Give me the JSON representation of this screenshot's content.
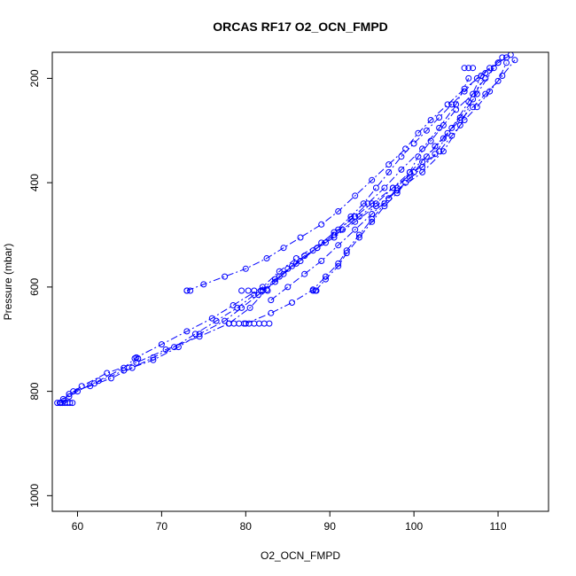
{
  "chart_data": {
    "type": "line",
    "title": "ORCAS RF17 O2_OCN_FMPD",
    "xlabel": "O2_OCN_FMPD",
    "ylabel": "Pressure (mbar)",
    "xlim": [
      57,
      116
    ],
    "ylim": [
      1030,
      150
    ],
    "y_reversed": true,
    "xticks": [
      60,
      70,
      80,
      90,
      100,
      110
    ],
    "yticks": [
      200,
      400,
      600,
      800,
      1000
    ],
    "grid": false,
    "color": "#0000ff",
    "marker": "open-circle",
    "series": [
      {
        "x": [
          58.0,
          58.4,
          59.0,
          60.0,
          62.5,
          65.5,
          67.0,
          70.0,
          73.0,
          76.0,
          78.5,
          82.0,
          84.0,
          86.0,
          89.0,
          91.0,
          93.0,
          95.0,
          97.5,
          100.0,
          102.5,
          104.5,
          106.5,
          108.0
        ],
        "y": [
          822,
          818,
          810,
          800,
          780,
          755,
          735,
          710,
          685,
          660,
          635,
          600,
          570,
          545,
          515,
          490,
          465,
          440,
          410,
          380,
          345,
          295,
          245,
          195
        ]
      },
      {
        "x": [
          59.5,
          61.5,
          64.0,
          66.5,
          69.0,
          71.5,
          74.0,
          76.5,
          79.0,
          81.0,
          83.5,
          85.5,
          88.0,
          90.5,
          93.0,
          95.5,
          98.0,
          101.0,
          103.5,
          105.5,
          107.0,
          108.5
        ],
        "y": [
          800,
          790,
          775,
          755,
          735,
          715,
          690,
          665,
          640,
          615,
          585,
          560,
          530,
          505,
          475,
          445,
          415,
          380,
          340,
          290,
          240,
          190
        ]
      },
      {
        "x": [
          58.3,
          60.5,
          63.5,
          67.0,
          70.5,
          74.5,
          78.0,
          80.5,
          82.5,
          84.5,
          86.5,
          88.5,
          90.5,
          92.5,
          94.5,
          96.5,
          98.5,
          101.0,
          103.0,
          105.0,
          106.5
        ],
        "y": [
          815,
          790,
          765,
          745,
          720,
          695,
          670,
          640,
          605,
          575,
          550,
          525,
          500,
          470,
          440,
          410,
          375,
          335,
          295,
          250,
          200
        ]
      },
      {
        "x": [
          59.0,
          62.0,
          65.5,
          69.0,
          72.0,
          74.5,
          77.5,
          79.5,
          81.5,
          83.5,
          85.0,
          87.0,
          89.5,
          91.5,
          93.5,
          95.5,
          97.5,
          99.5,
          101.5,
          103.5,
          105.5,
          107.5,
          109.5
        ],
        "y": [
          805,
          785,
          760,
          740,
          715,
          690,
          665,
          640,
          615,
          590,
          565,
          540,
          515,
          490,
          465,
          440,
          410,
          380,
          350,
          315,
          275,
          230,
          180
        ]
      },
      {
        "x": [
          80.0,
          83.0,
          85.5,
          88.0,
          89.5,
          91.0,
          92.0,
          93.5,
          95.0,
          96.5,
          98.0,
          99.5,
          100.5,
          102.0,
          103.5,
          105.0,
          107.0,
          108.5,
          110.0,
          111.0
        ],
        "y": [
          670,
          650,
          630,
          605,
          580,
          555,
          530,
          500,
          470,
          440,
          410,
          380,
          350,
          320,
          290,
          260,
          230,
          200,
          170,
          160
        ]
      },
      {
        "x": [
          73.0,
          75.0,
          77.5,
          80.0,
          82.5,
          84.5,
          86.5,
          89.0,
          91.0,
          93.0,
          95.0,
          97.0,
          99.0,
          100.5,
          102.0,
          104.0,
          106.0,
          108.0,
          110.0,
          111.5
        ],
        "y": [
          607,
          595,
          580,
          565,
          545,
          525,
          505,
          480,
          455,
          425,
          395,
          365,
          335,
          305,
          280,
          250,
          220,
          195,
          170,
          155
        ]
      },
      {
        "x": [
          83.0,
          85.0,
          87.0,
          89.0,
          91.0,
          93.0,
          95.0,
          97.0,
          99.0,
          101.0,
          103.0,
          104.5,
          106.0,
          107.5,
          109.0,
          110.5,
          112.0
        ],
        "y": [
          625,
          600,
          575,
          550,
          520,
          490,
          460,
          430,
          400,
          370,
          340,
          310,
          280,
          255,
          225,
          195,
          165
        ]
      },
      {
        "x": [
          82.0,
          84.0,
          86.0,
          88.5,
          90.5,
          92.5,
          94.0,
          95.5,
          97.0,
          98.5,
          100.0,
          101.5,
          103.0,
          104.5,
          106.0,
          107.5,
          109.0,
          110.5
        ],
        "y": [
          607,
          580,
          555,
          525,
          495,
          465,
          440,
          410,
          380,
          350,
          325,
          300,
          275,
          250,
          225,
          200,
          180,
          160
        ]
      },
      {
        "x": [
          88.3,
          89.5,
          91.0,
          92.0,
          93.5,
          95.0,
          96.5,
          98.0,
          99.5,
          101.0,
          102.5,
          104.0,
          105.5,
          107.0,
          108.5,
          110.0,
          111.0
        ],
        "y": [
          607,
          585,
          560,
          535,
          505,
          475,
          445,
          420,
          390,
          360,
          330,
          305,
          280,
          255,
          230,
          205,
          170
        ]
      }
    ],
    "clusters": [
      {
        "x": [
          57.6,
          57.9,
          58.2,
          58.5,
          58.8,
          59.1,
          59.4
        ],
        "y": [
          822,
          822,
          822,
          822,
          822,
          822,
          822
        ]
      },
      {
        "x": [
          79.5,
          80.3,
          81.0,
          81.8,
          82.6
        ],
        "y": [
          607,
          607,
          607,
          607,
          607
        ]
      },
      {
        "x": [
          73.0,
          73.4
        ],
        "y": [
          607,
          607
        ]
      },
      {
        "x": [
          88.0,
          88.4
        ],
        "y": [
          607,
          607
        ]
      },
      {
        "x": [
          78.0,
          78.6,
          79.2,
          79.8,
          80.4,
          81.0,
          81.6,
          82.2,
          82.8
        ],
        "y": [
          670,
          670,
          670,
          670,
          670,
          670,
          670,
          670,
          670
        ]
      },
      {
        "x": [
          66.8,
          67.2
        ],
        "y": [
          737,
          737
        ]
      },
      {
        "x": [
          106.0,
          106.5,
          107.0
        ],
        "y": [
          180,
          180,
          180
        ]
      }
    ]
  }
}
